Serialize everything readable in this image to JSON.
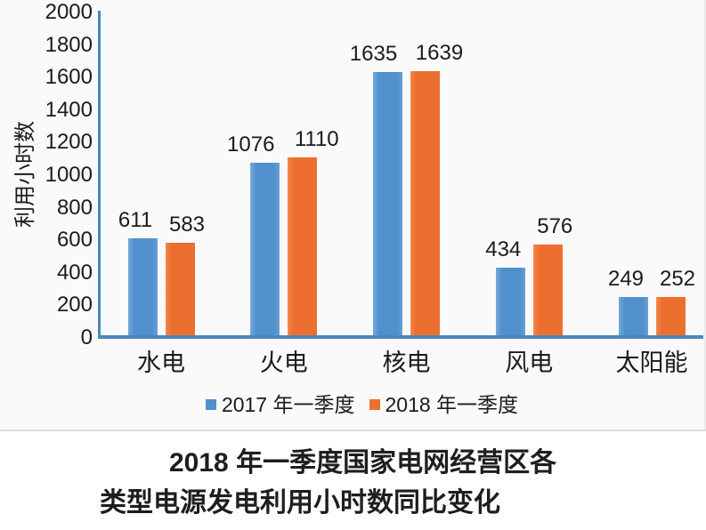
{
  "chart_data": {
    "type": "bar",
    "title": "2018 年一季度国家电网经营区各类型电源发电利用小时数同比变化",
    "title_lines": [
      "2018 年一季度国家电网经营区各",
      "类型电源发电利用小时数同比变化"
    ],
    "categories": [
      "水电",
      "火电",
      "核电",
      "风电",
      "太阳能"
    ],
    "series": [
      {
        "name": "2017 年一季度",
        "color": "#4f90cd",
        "values": [
          611,
          1076,
          1635,
          434,
          249
        ]
      },
      {
        "name": "2018 年一季度",
        "color": "#ed6f2f",
        "values": [
          583,
          1110,
          1639,
          576,
          252
        ]
      }
    ],
    "xlabel": "",
    "ylabel": "利用小时数",
    "ylim": [
      0,
      2000
    ],
    "ytick_step": 200,
    "grid": false,
    "legend_position": "bottom",
    "data_labels": true
  },
  "colors": {
    "series_2017": "#4f90cd",
    "series_2018": "#ed6f2f",
    "axis_line": "#4a87bd",
    "chart_background": "#fbfafa",
    "divider": "#dcdad8",
    "text": "#1b1b1b"
  }
}
